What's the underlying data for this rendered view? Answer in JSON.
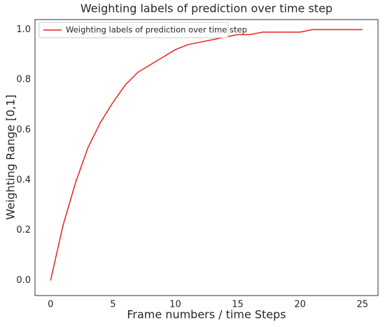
{
  "chart_data": {
    "type": "line",
    "title": "Weighting labels of prediction over time step",
    "x_label": "Frame numbers / time Steps",
    "y_label": "Weighting Range [0,1]",
    "x": [
      0,
      1,
      2,
      3,
      4,
      5,
      6,
      7,
      8,
      9,
      10,
      11,
      12,
      13,
      14,
      15,
      16,
      17,
      18,
      19,
      20,
      21,
      22,
      23,
      24,
      25
    ],
    "series": [
      {
        "name": "Weighting labels of prediction over time step",
        "color": "#e8221e",
        "values": [
          0,
          0.22,
          0.39,
          0.53,
          0.63,
          0.71,
          0.78,
          0.83,
          0.86,
          0.89,
          0.92,
          0.94,
          0.95,
          0.96,
          0.97,
          0.98,
          0.98,
          0.99,
          0.99,
          0.99,
          0.99,
          1.0,
          1.0,
          1.0,
          1.0,
          1.0
        ]
      }
    ],
    "xlim": [
      -1.25,
      26.25
    ],
    "ylim": [
      -0.06,
      1.04
    ],
    "xticks": [
      0,
      5,
      10,
      15,
      20,
      25
    ],
    "yticks": [
      {
        "value": 0,
        "label": "0.0"
      },
      {
        "value": 0.2,
        "label": "0.2"
      },
      {
        "value": 0.4,
        "label": "0.4"
      },
      {
        "value": 0.6,
        "label": "0.6"
      },
      {
        "value": 0.8,
        "label": "0.8"
      },
      {
        "value": 1,
        "label": "1.0"
      }
    ],
    "legend": "upper left",
    "grid": false
  }
}
